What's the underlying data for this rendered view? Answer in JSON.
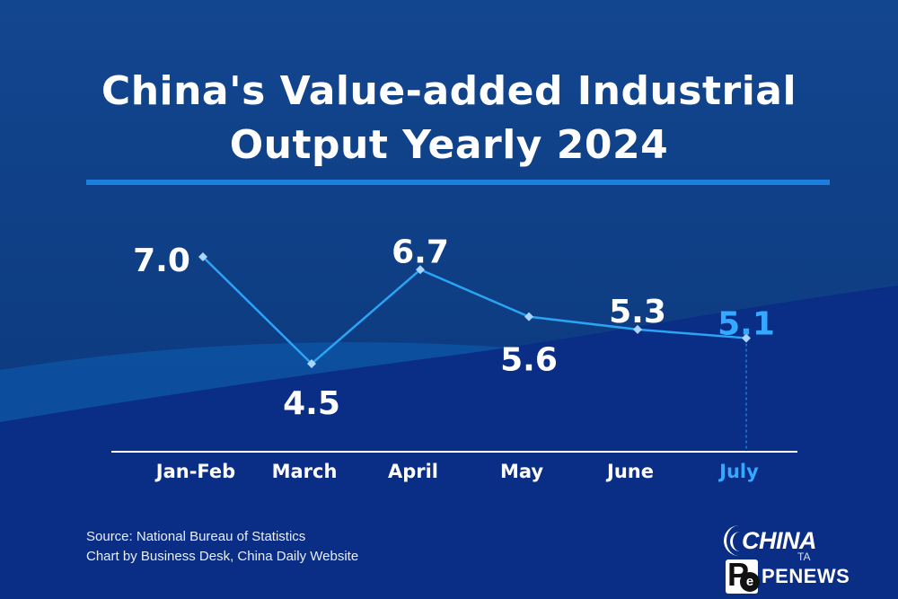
{
  "title_line1": "China's Value-added Industrial",
  "title_line2": "Output Yearly 2024",
  "chart_data": {
    "type": "line",
    "title": "China's Value-added Industrial Output Yearly 2024",
    "categories": [
      "Jan-Feb",
      "March",
      "April",
      "May",
      "June",
      "July"
    ],
    "values": [
      7.0,
      4.5,
      6.7,
      5.6,
      5.3,
      5.1
    ],
    "value_labels": [
      "7.0",
      "4.5",
      "6.7",
      "5.6",
      "5.3",
      "5.1"
    ],
    "highlight_index": 5,
    "ylim": [
      4.5,
      7.0
    ],
    "xlabel": "",
    "ylabel": "",
    "colors": {
      "line": "#2aa4f4",
      "marker": "#a9d5ff",
      "highlight": "#35a8ff",
      "label": "#ffffff",
      "axis": "#ffffff"
    }
  },
  "footer": {
    "source": "Source: National Bureau of Statistics",
    "credit": "Chart by Business Desk, China Daily Website"
  },
  "logo": {
    "word": "CHINA",
    "sub": "TA",
    "letter": "P",
    "mark": "e",
    "brand": "PENEWS"
  },
  "colors": {
    "background": "#0e3f86",
    "rule": "#1b7fe0"
  }
}
